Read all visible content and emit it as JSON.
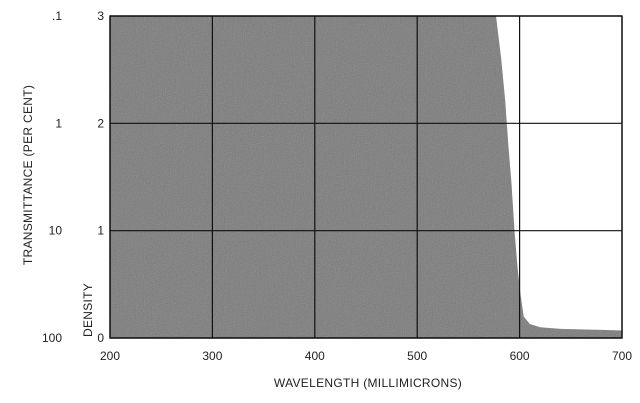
{
  "chart_data": {
    "type": "area",
    "xlabel": "WAVELENGTH (MILLIMICRONS)",
    "ylabel": "DENSITY",
    "ylabel_secondary": "TRANSMITTANCE (PER CENT)",
    "xlim": [
      200,
      700
    ],
    "ylim": [
      0,
      3
    ],
    "x_ticks": [
      200,
      300,
      400,
      500,
      600,
      700
    ],
    "y_ticks": [
      0,
      1,
      2,
      3
    ],
    "y_secondary_ticks": [
      {
        "density": 3,
        "label": ".1"
      },
      {
        "density": 2,
        "label": "1"
      },
      {
        "density": 1,
        "label": "10"
      },
      {
        "density": 0,
        "label": "100"
      }
    ],
    "grid": true,
    "fill_color": "#7a7a7a",
    "series": [
      {
        "x": [
          200,
          300,
          400,
          500,
          560,
          577,
          582,
          586,
          589,
          592,
          595,
          598,
          601,
          604,
          610,
          620,
          640,
          660,
          680,
          700
        ],
        "y": [
          3,
          3,
          3,
          3,
          3,
          3,
          2.6,
          2.2,
          1.8,
          1.45,
          1.0,
          0.65,
          0.4,
          0.2,
          0.13,
          0.1,
          0.085,
          0.08,
          0.075,
          0.07
        ]
      }
    ]
  }
}
